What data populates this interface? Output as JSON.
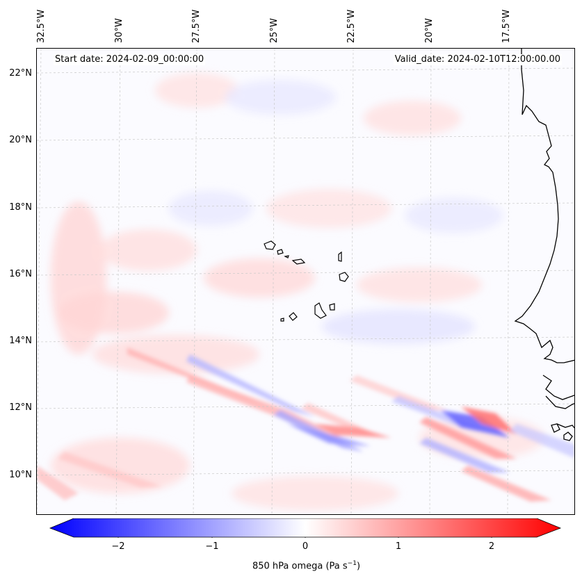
{
  "map": {
    "start_date": "Start date: 2024-02-09_00:00:00",
    "valid_date": "Valid_date: 2024-02-10T12:00:00.00",
    "lon_labels": [
      "32.5°W",
      "30°W",
      "27.5°W",
      "25°W",
      "22.5°W",
      "20°W",
      "17.5°W"
    ],
    "lat_labels": [
      "22°N",
      "20°N",
      "18°N",
      "16°N",
      "14°N",
      "12°N",
      "10°N"
    ],
    "colors": {
      "negative": "#0000ff",
      "zero": "#ffffff",
      "positive": "#ff0000",
      "coast": "#000000",
      "grid": "#bbbbbb"
    }
  },
  "colorbar": {
    "label": "850 hPa omega (Pa s",
    "label_sup": "−1",
    "label_end": ")",
    "ticks": [
      "−2",
      "−1",
      "0",
      "1",
      "2"
    ],
    "range": [
      -2.7,
      2.7
    ]
  }
}
